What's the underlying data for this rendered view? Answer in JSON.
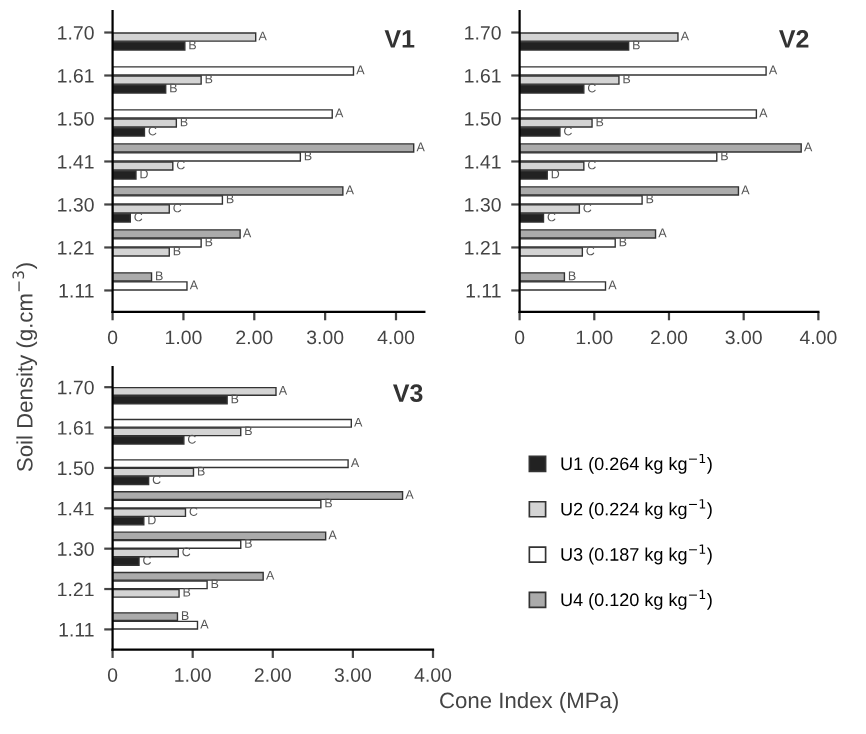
{
  "chart_data": [
    {
      "type": "bar",
      "orientation": "horizontal",
      "title": "V1",
      "categories": [
        "1.70",
        "1.61",
        "1.50",
        "1.41",
        "1.30",
        "1.21",
        "1.11"
      ],
      "xlim": [
        0,
        4.4
      ],
      "xticks": [
        {
          "value": 0,
          "label": "0"
        },
        {
          "value": 1,
          "label": "1.00"
        },
        {
          "value": 2,
          "label": "2.00"
        },
        {
          "value": 3,
          "label": "3.00"
        },
        {
          "value": 4,
          "label": "4.00"
        }
      ],
      "grid": false,
      "legend": false,
      "series": [
        {
          "color": "#ababab",
          "values": [
            null,
            null,
            null,
            4.25,
            3.25,
            1.8,
            0.55
          ],
          "value_labels": [
            null,
            null,
            null,
            "A",
            "A",
            "A",
            "B"
          ]
        },
        {
          "color": "#ffffff",
          "values": [
            null,
            3.4,
            3.1,
            2.65,
            1.55,
            1.25,
            1.05
          ],
          "value_labels": [
            null,
            "A",
            "A",
            "B",
            "B",
            "B",
            "A"
          ]
        },
        {
          "color": "#d4d4d4",
          "values": [
            2.02,
            1.25,
            0.9,
            0.85,
            0.8,
            0.8,
            null
          ],
          "value_labels": [
            "A",
            "B",
            "B",
            "C",
            "C",
            "B",
            null
          ]
        },
        {
          "color": "#222222",
          "values": [
            1.02,
            0.75,
            0.45,
            0.33,
            0.25,
            null,
            null
          ],
          "value_labels": [
            "B",
            "B",
            "C",
            "D",
            "C",
            null,
            null
          ]
        }
      ]
    },
    {
      "type": "bar",
      "orientation": "horizontal",
      "title": "V2",
      "categories": [
        "1.70",
        "1.61",
        "1.50",
        "1.41",
        "1.30",
        "1.21",
        "1.11"
      ],
      "xlim": [
        0,
        4
      ],
      "xticks": [
        {
          "value": 0,
          "label": "0"
        },
        {
          "value": 1,
          "label": "1.00"
        },
        {
          "value": 2,
          "label": "2.00"
        },
        {
          "value": 3,
          "label": "3.00"
        },
        {
          "value": 4,
          "label": "4.00"
        }
      ],
      "grid": false,
      "legend": false,
      "series": [
        {
          "color": "#ababab",
          "values": [
            null,
            null,
            null,
            3.77,
            2.93,
            1.82,
            0.6
          ],
          "value_labels": [
            null,
            null,
            null,
            "A",
            "A",
            "A",
            "B"
          ]
        },
        {
          "color": "#ffffff",
          "values": [
            null,
            3.3,
            3.17,
            2.64,
            1.64,
            1.28,
            1.15
          ],
          "value_labels": [
            null,
            "A",
            "A",
            "B",
            "B",
            "B",
            "A"
          ]
        },
        {
          "color": "#d4d4d4",
          "values": [
            2.12,
            1.33,
            0.97,
            0.86,
            0.8,
            0.84,
            null
          ],
          "value_labels": [
            "A",
            "B",
            "B",
            "C",
            "C",
            "C",
            null
          ]
        },
        {
          "color": "#222222",
          "values": [
            1.46,
            0.86,
            0.54,
            0.37,
            0.32,
            null,
            null
          ],
          "value_labels": [
            "B",
            "C",
            "C",
            "D",
            "C",
            null,
            null
          ]
        }
      ]
    },
    {
      "type": "bar",
      "orientation": "horizontal",
      "title": "V3",
      "xlabel": "Cone Index (MPa)",
      "ylabel": "Soil Density (g.cm$^{−3}$)",
      "categories": [
        "1.70",
        "1.61",
        "1.50",
        "1.41",
        "1.30",
        "1.21",
        "1.11"
      ],
      "xlim": [
        0,
        4
      ],
      "xticks": [
        {
          "value": 0,
          "label": "0"
        },
        {
          "value": 1,
          "label": "1.00"
        },
        {
          "value": 2,
          "label": "2.00"
        },
        {
          "value": 3,
          "label": "3.00"
        },
        {
          "value": 4,
          "label": "4.00"
        }
      ],
      "grid": false,
      "legend": "right",
      "series": [
        {
          "name": "U4 (0.120 kg kg$^{−1}$)",
          "color": "#ababab",
          "values": [
            null,
            null,
            null,
            3.62,
            2.66,
            1.88,
            0.81
          ],
          "value_labels": [
            null,
            null,
            null,
            "A",
            "A",
            "A",
            "B"
          ]
        },
        {
          "name": "U3 (0.187 kg kg$^{−1}$)",
          "color": "#ffffff",
          "values": [
            null,
            2.98,
            2.94,
            2.6,
            1.6,
            1.18,
            1.06
          ],
          "value_labels": [
            null,
            "A",
            "A",
            "B",
            "B",
            "B",
            "A"
          ]
        },
        {
          "name": "U2 (0.224 kg kg$^{−1}$)",
          "color": "#d4d4d4",
          "values": [
            2.04,
            1.6,
            1.01,
            0.91,
            0.82,
            0.83,
            null
          ],
          "value_labels": [
            "A",
            "B",
            "B",
            "C",
            "C",
            "B",
            null
          ]
        },
        {
          "name": "U1 (0.264 kg kg$^{−1}$)",
          "color": "#222222",
          "values": [
            1.43,
            0.89,
            0.45,
            0.39,
            0.33,
            null,
            null
          ],
          "value_labels": [
            "B",
            "C",
            "C",
            "D",
            "C",
            null,
            null
          ]
        }
      ]
    }
  ]
}
